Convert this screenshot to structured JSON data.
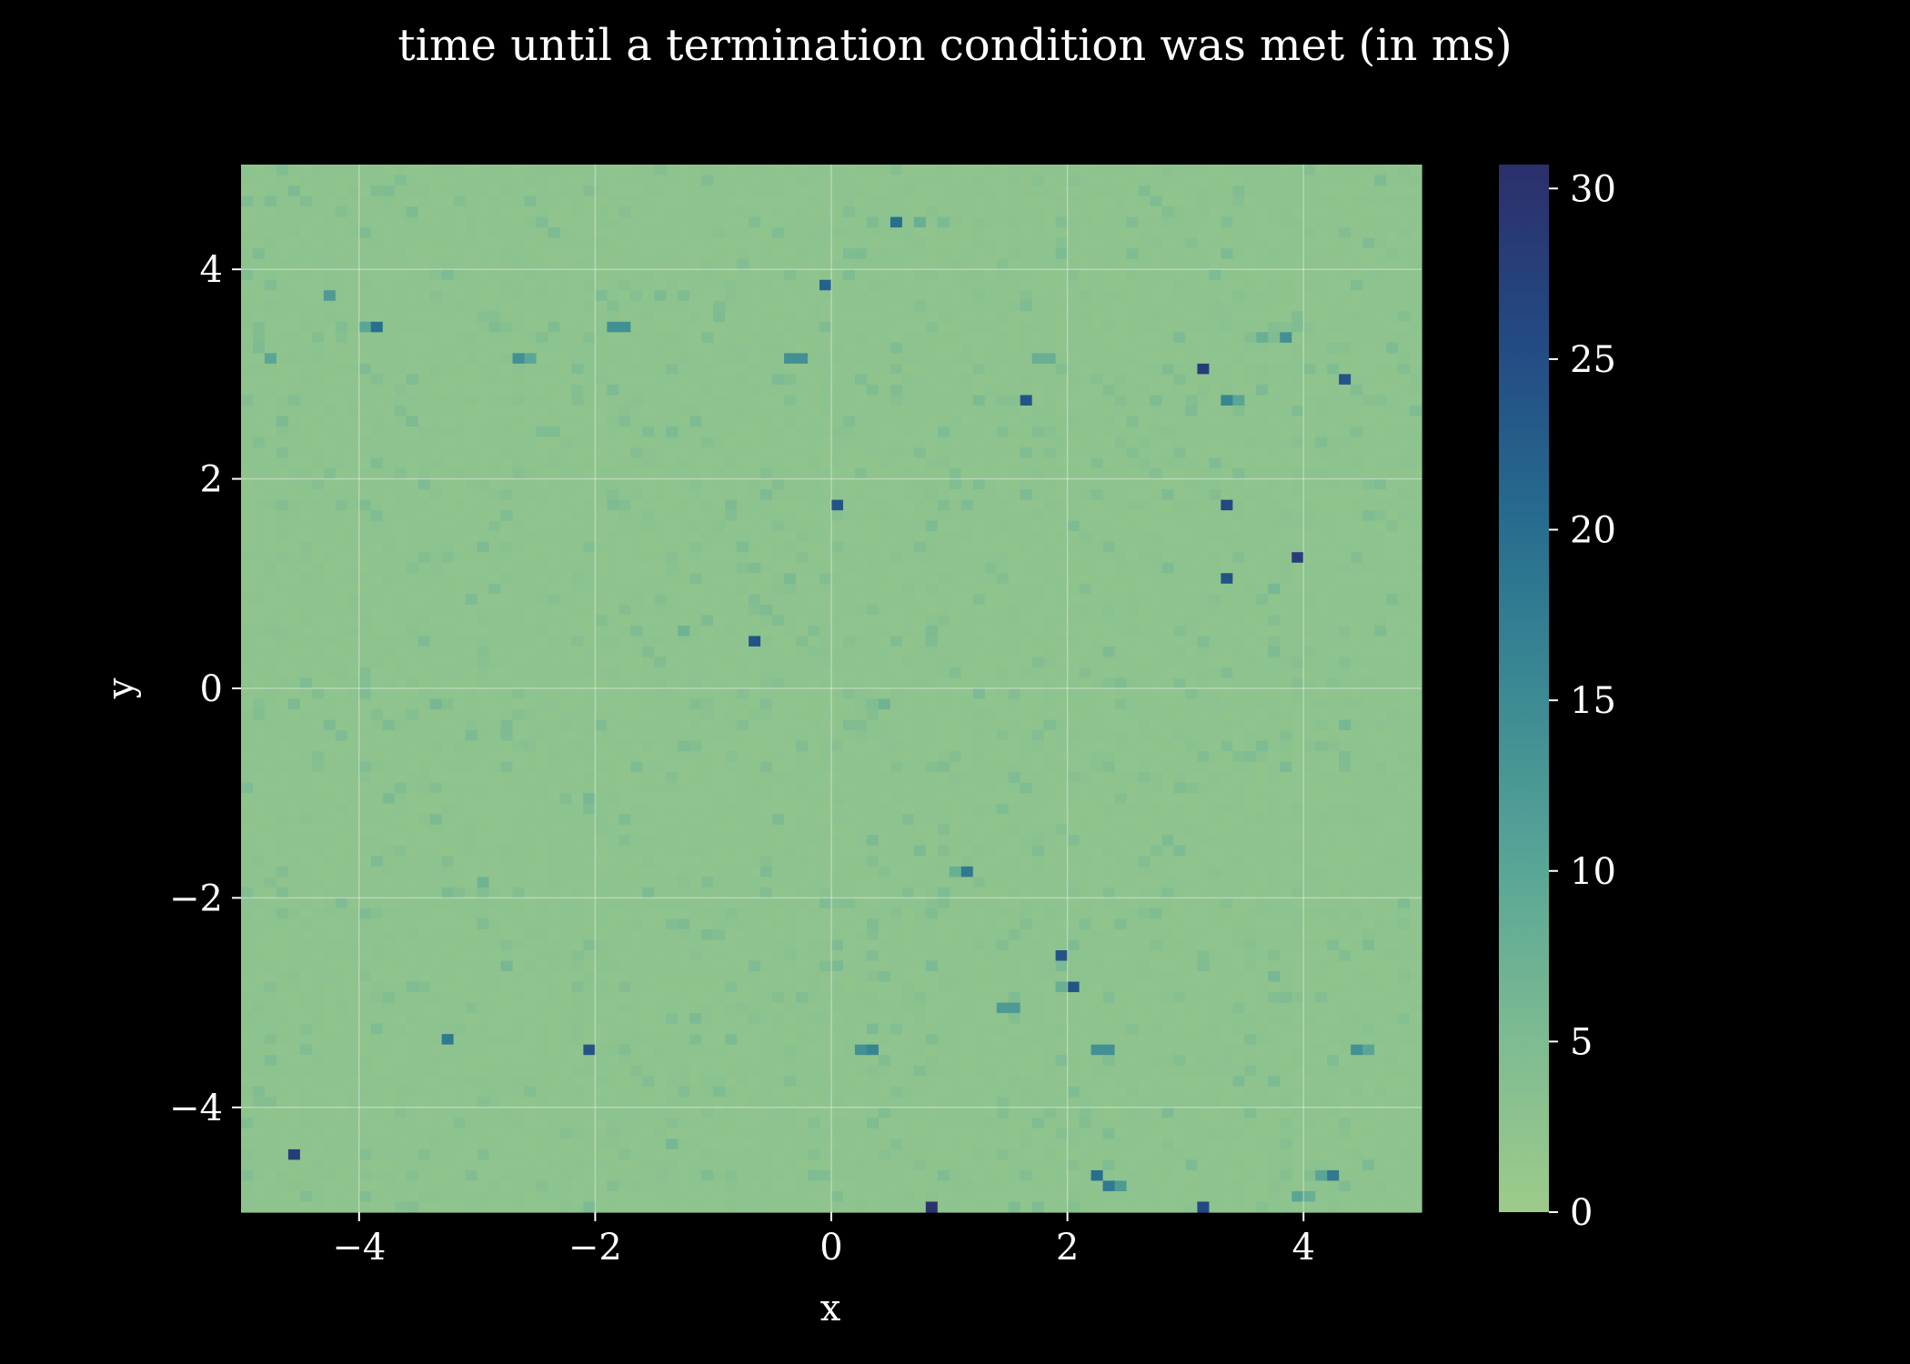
{
  "chart_data": {
    "type": "heatmap",
    "title": "time until a termination condition was met (in ms)",
    "xlabel": "x",
    "ylabel": "y",
    "xlim": [
      -5,
      5
    ],
    "ylim": [
      -5,
      5
    ],
    "grid": true,
    "grid_rows": 100,
    "grid_cols": 100,
    "base_value": 2.5,
    "colorbar": {
      "range": [
        0,
        30.7
      ],
      "ticks": [
        0,
        5,
        10,
        15,
        20,
        25,
        30
      ],
      "tick_labels": [
        "0",
        "5",
        "10",
        "15",
        "20",
        "25",
        "30"
      ],
      "colormap": [
        "#9ecb8a",
        "#7dbb92",
        "#58a596",
        "#3b8993",
        "#266b8e",
        "#234a83",
        "#2c2f6b"
      ]
    },
    "x_ticks": [
      -4,
      -2,
      0,
      2,
      4
    ],
    "x_tick_labels": [
      "−4",
      "−2",
      "0",
      "2",
      "4"
    ],
    "y_ticks": [
      4,
      2,
      0,
      -2,
      -4
    ],
    "y_tick_labels": [
      "4",
      "2",
      "0",
      "−2",
      "−4"
    ],
    "hotspots": [
      {
        "x": 0.6,
        "y": 4.4,
        "value": 20
      },
      {
        "x": 0.7,
        "y": 4.4,
        "value": 8
      },
      {
        "x": -4.3,
        "y": 3.8,
        "value": 12
      },
      {
        "x": -4.2,
        "y": 3.8,
        "value": 12
      },
      {
        "x": -0.05,
        "y": 3.9,
        "value": 22
      },
      {
        "x": -3.9,
        "y": 3.5,
        "value": 20
      },
      {
        "x": -4.0,
        "y": 3.5,
        "value": 10
      },
      {
        "x": -1.8,
        "y": 3.5,
        "value": 14
      },
      {
        "x": -1.9,
        "y": 3.5,
        "value": 14
      },
      {
        "x": -4.7,
        "y": 3.2,
        "value": 18
      },
      {
        "x": -4.8,
        "y": 3.2,
        "value": 10
      },
      {
        "x": -2.7,
        "y": 3.2,
        "value": 14
      },
      {
        "x": -2.6,
        "y": 3.2,
        "value": 10
      },
      {
        "x": -0.4,
        "y": 3.2,
        "value": 14
      },
      {
        "x": -0.3,
        "y": 3.2,
        "value": 14
      },
      {
        "x": 1.7,
        "y": 3.2,
        "value": 8
      },
      {
        "x": 1.8,
        "y": 3.2,
        "value": 8
      },
      {
        "x": 3.1,
        "y": 3.1,
        "value": 28
      },
      {
        "x": 4.3,
        "y": 3.0,
        "value": 24
      },
      {
        "x": 3.8,
        "y": 3.4,
        "value": 14
      },
      {
        "x": 3.7,
        "y": 3.4,
        "value": 8
      },
      {
        "x": 1.65,
        "y": 2.8,
        "value": 24
      },
      {
        "x": 3.3,
        "y": 2.8,
        "value": 16
      },
      {
        "x": 3.4,
        "y": 2.8,
        "value": 10
      },
      {
        "x": 0.05,
        "y": 1.75,
        "value": 24
      },
      {
        "x": 3.35,
        "y": 1.75,
        "value": 26
      },
      {
        "x": 3.9,
        "y": 1.25,
        "value": 28
      },
      {
        "x": 3.3,
        "y": 1.05,
        "value": 24
      },
      {
        "x": -0.65,
        "y": 0.45,
        "value": 24
      },
      {
        "x": 1.15,
        "y": -1.75,
        "value": 18
      },
      {
        "x": 1.05,
        "y": -1.75,
        "value": 8
      },
      {
        "x": 1.95,
        "y": -2.55,
        "value": 24
      },
      {
        "x": 2.05,
        "y": -2.85,
        "value": 24
      },
      {
        "x": 1.95,
        "y": -2.85,
        "value": 8
      },
      {
        "x": 1.4,
        "y": -3.05,
        "value": 12
      },
      {
        "x": 1.5,
        "y": -3.05,
        "value": 10
      },
      {
        "x": 1.6,
        "y": -3.05,
        "value": 12
      },
      {
        "x": -3.3,
        "y": -3.35,
        "value": 18
      },
      {
        "x": -2.05,
        "y": -3.45,
        "value": 24
      },
      {
        "x": 0.25,
        "y": -3.45,
        "value": 14
      },
      {
        "x": 0.35,
        "y": -3.45,
        "value": 16
      },
      {
        "x": 2.2,
        "y": -3.45,
        "value": 14
      },
      {
        "x": 2.3,
        "y": -3.45,
        "value": 14
      },
      {
        "x": 4.4,
        "y": -3.45,
        "value": 14
      },
      {
        "x": 4.5,
        "y": -3.45,
        "value": 10
      },
      {
        "x": -4.55,
        "y": -4.45,
        "value": 28
      },
      {
        "x": 2.25,
        "y": -4.65,
        "value": 20
      },
      {
        "x": 2.35,
        "y": -4.75,
        "value": 18
      },
      {
        "x": 2.45,
        "y": -4.75,
        "value": 12
      },
      {
        "x": 4.25,
        "y": -4.65,
        "value": 18
      },
      {
        "x": 4.15,
        "y": -4.65,
        "value": 10
      },
      {
        "x": 3.95,
        "y": -4.85,
        "value": 10
      },
      {
        "x": 4.05,
        "y": -4.85,
        "value": 8
      },
      {
        "x": 0.85,
        "y": -4.95,
        "value": 30
      },
      {
        "x": 3.15,
        "y": -4.95,
        "value": 26
      },
      {
        "x": -3.4,
        "y": -0.1,
        "value": 6
      },
      {
        "x": 0.45,
        "y": -0.15,
        "value": 7
      },
      {
        "x": -1.3,
        "y": 0.55,
        "value": 7
      },
      {
        "x": -2.05,
        "y": -1.05,
        "value": 6
      },
      {
        "x": -2.95,
        "y": -1.85,
        "value": 7
      },
      {
        "x": 4.35,
        "y": -0.35,
        "value": 6
      },
      {
        "x": 3.75,
        "y": -2.75,
        "value": 6
      },
      {
        "x": -2.75,
        "y": -2.65,
        "value": 6
      },
      {
        "x": -1.35,
        "y": -4.3,
        "value": 6
      },
      {
        "x": 3.75,
        "y": 0.95,
        "value": 6
      }
    ]
  }
}
